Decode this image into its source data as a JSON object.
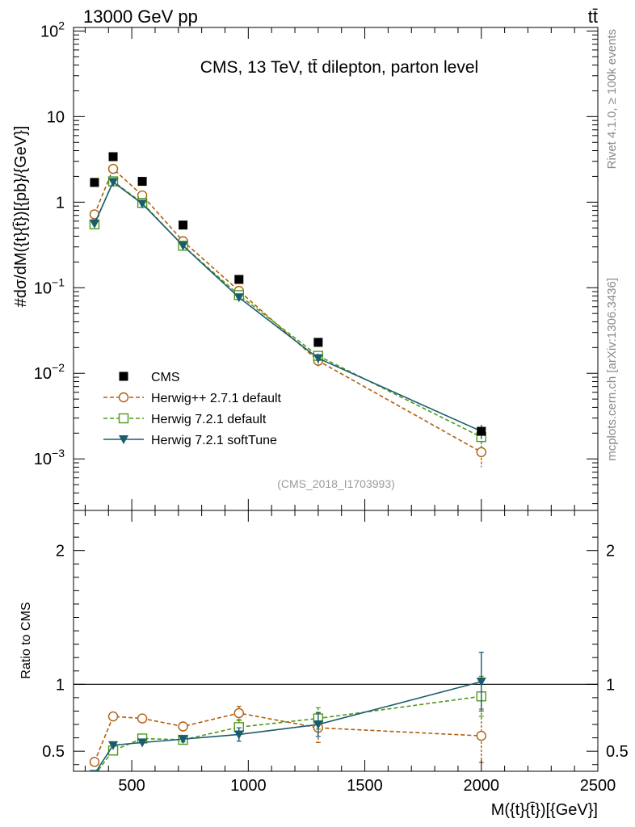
{
  "header": {
    "left": "13000 GeV pp",
    "right": "tt̄"
  },
  "side_labels": {
    "rivet": "Rivet 4.1.0, ≥ 100k events",
    "mcplots": "mcplots.cern.ch [arXiv:1306.3436]"
  },
  "chart_data": {
    "type": "scatter",
    "title": "CMS, 13 TeV, tt̄ dilepton, parton level",
    "analysis_id": "(CMS_2018_I1703993)",
    "x": [
      340,
      420,
      545,
      720,
      960,
      1300,
      2000
    ],
    "xlim": [
      250,
      2500
    ],
    "xticks": [
      "500",
      "1000",
      "1500",
      "2000",
      "2500"
    ],
    "xlabel": "M({t}{t̄})[{GeV}]",
    "main": {
      "ylabel": "#dσ/dM({t}{t̄})[{pb}/{GeV}]",
      "yscale": "log",
      "ylim": [
        0.00025,
        110
      ],
      "yticks": [
        {
          "value": 0.001,
          "base": "10",
          "exp": "−3"
        },
        {
          "value": 0.01,
          "base": "10",
          "exp": "−2"
        },
        {
          "value": 0.1,
          "base": "10",
          "exp": "−1"
        },
        {
          "value": 1,
          "base": "1",
          "exp": ""
        },
        {
          "value": 10,
          "base": "10",
          "exp": ""
        },
        {
          "value": 100,
          "base": "10",
          "exp": "2"
        }
      ],
      "series": [
        {
          "name": "CMS",
          "color": "#000000",
          "marker": "square-filled",
          "line": "none",
          "values": [
            1.7,
            3.4,
            1.75,
            0.54,
            0.125,
            0.023,
            0.0021
          ],
          "errors": [
            0,
            0,
            0,
            0,
            0,
            0,
            0
          ]
        },
        {
          "name": "Herwig++ 2.7.1 default",
          "color": "#b15e0d",
          "marker": "circle-open",
          "line": "dashed",
          "values": [
            0.72,
            2.45,
            1.2,
            0.35,
            0.092,
            0.014,
            0.0012
          ],
          "errors": [
            0,
            0,
            0,
            0,
            0.005,
            0.002,
            0.0004
          ]
        },
        {
          "name": "Herwig 7.2.1 default",
          "color": "#4d9a19",
          "marker": "square-open",
          "line": "dashed",
          "values": [
            0.55,
            1.75,
            0.98,
            0.31,
            0.082,
            0.016,
            0.0018
          ],
          "errors": [
            0,
            0,
            0,
            0,
            0.005,
            0.002,
            0.0004
          ]
        },
        {
          "name": "Herwig 7.2.1 softTune",
          "color": "#1a5c6e",
          "marker": "triangle-down-filled",
          "line": "solid",
          "values": [
            0.56,
            1.72,
            0.96,
            0.31,
            0.077,
            0.015,
            0.0021
          ],
          "errors": [
            0,
            0,
            0,
            0,
            0.005,
            0.002,
            0.0004
          ]
        }
      ]
    },
    "ratio": {
      "ylabel": "Ratio to CMS",
      "ylim": [
        0.35,
        2.3
      ],
      "yticks": [
        "0.5",
        "1",
        "2"
      ],
      "reference": 1,
      "series": [
        {
          "name": "Herwig++ 2.7.1 default",
          "values": [
            0.42,
            0.76,
            0.745,
            0.685,
            0.785,
            0.675,
            0.615
          ],
          "errors": [
            0.02,
            0,
            0,
            0.03,
            0.05,
            0.11,
            0.2
          ]
        },
        {
          "name": "Herwig 7.2.1 default",
          "values": [
            0.32,
            0.505,
            0.595,
            0.585,
            0.68,
            0.745,
            0.91
          ],
          "errors": [
            0,
            0.02,
            0,
            0.02,
            0.05,
            0.08,
            0.15
          ]
        },
        {
          "name": "Herwig 7.2.1 softTune",
          "values": [
            0.33,
            0.545,
            0.565,
            0.59,
            0.625,
            0.7,
            1.02
          ],
          "errors": [
            0,
            0,
            0,
            0.02,
            0.05,
            0.09,
            0.22
          ]
        }
      ]
    }
  }
}
